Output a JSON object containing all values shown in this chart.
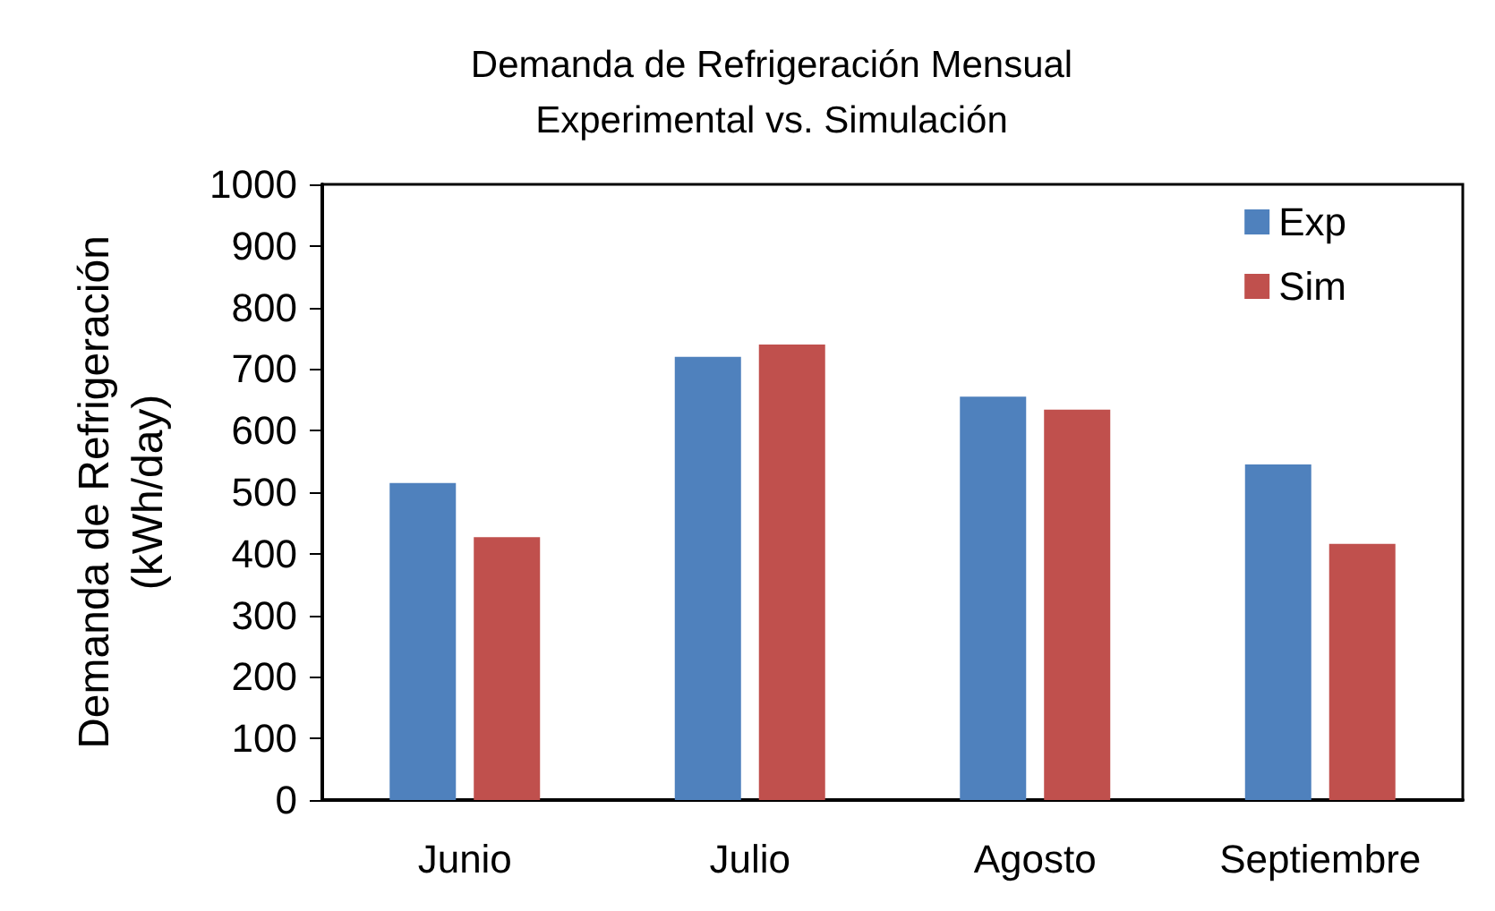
{
  "chart_data": {
    "type": "bar",
    "title": "Demanda de Refrigeración Mensual\nExperimental vs. Simulación",
    "ylabel": "Demanda de Refrigeración\n(kWh/day)",
    "categories": [
      "Junio",
      "Julio",
      "Agosto",
      "Septiembre"
    ],
    "series": [
      {
        "name": "Exp",
        "color": "#4f81bd",
        "values": [
          515,
          720,
          655,
          545
        ]
      },
      {
        "name": "Sim",
        "color": "#c0504d",
        "values": [
          427,
          740,
          634,
          416
        ]
      }
    ],
    "ylim": [
      0,
      1000
    ],
    "yticks": [
      0,
      100,
      200,
      300,
      400,
      500,
      600,
      700,
      800,
      900,
      1000
    ],
    "grid": false,
    "legend": "top right"
  }
}
